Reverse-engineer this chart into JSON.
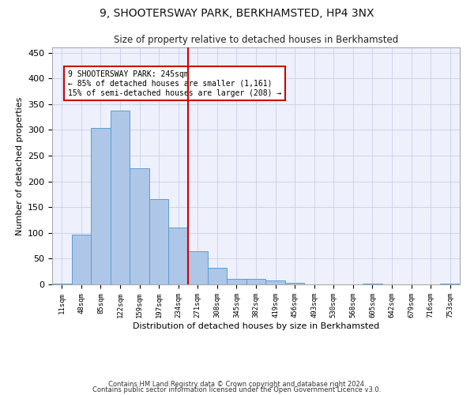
{
  "title1": "9, SHOOTERSWAY PARK, BERKHAMSTED, HP4 3NX",
  "title2": "Size of property relative to detached houses in Berkhamsted",
  "xlabel": "Distribution of detached houses by size in Berkhamsted",
  "ylabel": "Number of detached properties",
  "footer1": "Contains HM Land Registry data © Crown copyright and database right 2024.",
  "footer2": "Contains public sector information licensed under the Open Government Licence v3.0.",
  "bar_labels": [
    "11sqm",
    "48sqm",
    "85sqm",
    "122sqm",
    "159sqm",
    "197sqm",
    "234sqm",
    "271sqm",
    "308sqm",
    "345sqm",
    "382sqm",
    "419sqm",
    "456sqm",
    "493sqm",
    "530sqm",
    "568sqm",
    "605sqm",
    "642sqm",
    "679sqm",
    "716sqm",
    "753sqm"
  ],
  "bar_values": [
    2,
    97,
    303,
    338,
    225,
    165,
    110,
    65,
    32,
    10,
    10,
    7,
    3,
    0,
    0,
    0,
    1,
    0,
    0,
    0,
    1
  ],
  "bar_color": "#aec6e8",
  "bar_edge_color": "#5a9fd4",
  "vline_x": 6.5,
  "vline_color": "#cc0000",
  "ylim": [
    0,
    460
  ],
  "yticks": [
    0,
    50,
    100,
    150,
    200,
    250,
    300,
    350,
    400,
    450
  ],
  "annotation_text1": "9 SHOOTERSWAY PARK: 245sqm",
  "annotation_text2": "← 85% of detached houses are smaller (1,161)",
  "annotation_text3": "15% of semi-detached houses are larger (208) →",
  "annotation_box_color": "#cc0000",
  "bg_color": "#eef1fb",
  "grid_color": "#c8cfe8"
}
